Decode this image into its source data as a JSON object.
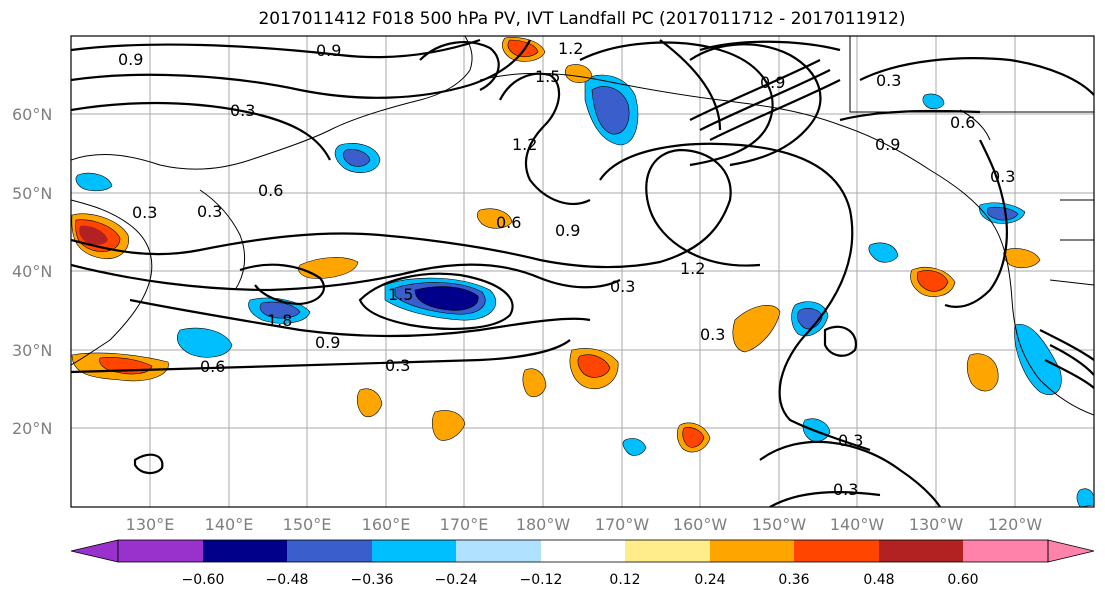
{
  "title": "2017011412 F018 500 hPa PV, IVT Landfall PC (2017011712 - 2017011912)",
  "map": {
    "lat_labels": [
      "60°N",
      "50°N",
      "40°N",
      "30°N",
      "20°N"
    ],
    "lon_labels": [
      "130°E",
      "140°E",
      "150°E",
      "160°E",
      "170°E",
      "180°W",
      "170°W",
      "160°W",
      "150°W",
      "140°W",
      "130°W",
      "120°W"
    ],
    "contour_labels": [
      "0.9",
      "0.9",
      "1.2",
      "1.5",
      "0.3",
      "0.6",
      "0.3",
      "1.2",
      "0.6",
      "0.9",
      "0.3",
      "0.6",
      "0.3",
      "0.9",
      "1.5",
      "1.8",
      "0.9",
      "0.6",
      "0.3",
      "0.3",
      "1.2",
      "0.3",
      "0.3",
      "0.3",
      "0.3",
      "0.9"
    ]
  },
  "colorbar": {
    "ticks": [
      "−0.60",
      "−0.48",
      "−0.36",
      "−0.24",
      "−0.12",
      "0.12",
      "0.24",
      "0.36",
      "0.48",
      "0.60"
    ],
    "colors": [
      "#9932cc",
      "#00008b",
      "#3a5fcd",
      "#00bfff",
      "#b0e2ff",
      "#ffffff",
      "#ffec8b",
      "#ffa500",
      "#ff4500",
      "#b22222",
      "#ff82ab"
    ]
  }
}
